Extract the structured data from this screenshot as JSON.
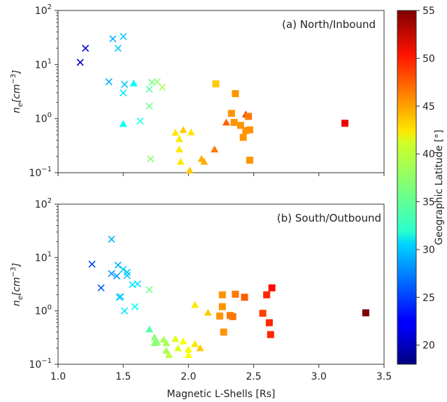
{
  "chart_data": [
    {
      "type": "scatter",
      "title": "(a) North/Inbound",
      "xlabel": "",
      "ylabel_main": "n",
      "ylabel_sub": "e",
      "ylabel_unit": "[cm",
      "ylabel_exp": "−3",
      "ylabel_close": "]",
      "xlim": [
        1.0,
        3.5
      ],
      "ylim": [
        0.1,
        100
      ],
      "yscale": "log",
      "yticks": [
        {
          "value": 0.1,
          "base": "10",
          "exp": "−1"
        },
        {
          "value": 1,
          "base": "10",
          "exp": "0"
        },
        {
          "value": 10,
          "base": "10",
          "exp": "1"
        },
        {
          "value": 100,
          "base": "10",
          "exp": "2"
        }
      ],
      "grid": false,
      "series": [
        {
          "marker": "x",
          "points": [
            {
              "x": 1.17,
              "y": 11,
              "lat": 20
            },
            {
              "x": 1.21,
              "y": 20,
              "lat": 21
            },
            {
              "x": 1.39,
              "y": 4.8,
              "lat": 29
            },
            {
              "x": 1.42,
              "y": 30,
              "lat": 29
            },
            {
              "x": 1.46,
              "y": 20,
              "lat": 30
            },
            {
              "x": 1.5,
              "y": 33,
              "lat": 30
            },
            {
              "x": 1.51,
              "y": 4.3,
              "lat": 30
            },
            {
              "x": 1.5,
              "y": 3.0,
              "lat": 31
            },
            {
              "x": 1.63,
              "y": 0.9,
              "lat": 33
            },
            {
              "x": 1.7,
              "y": 3.5,
              "lat": 35
            },
            {
              "x": 1.72,
              "y": 4.7,
              "lat": 36
            },
            {
              "x": 1.76,
              "y": 4.8,
              "lat": 37
            },
            {
              "x": 1.8,
              "y": 3.8,
              "lat": 38
            },
            {
              "x": 1.7,
              "y": 1.7,
              "lat": 36
            },
            {
              "x": 1.71,
              "y": 0.18,
              "lat": 37
            }
          ]
        },
        {
          "marker": "triangle",
          "points": [
            {
              "x": 1.5,
              "y": 0.8,
              "lat": 32
            },
            {
              "x": 1.58,
              "y": 4.5,
              "lat": 32
            },
            {
              "x": 1.9,
              "y": 0.55,
              "lat": 42
            },
            {
              "x": 1.93,
              "y": 0.42,
              "lat": 42
            },
            {
              "x": 1.93,
              "y": 0.27,
              "lat": 42
            },
            {
              "x": 1.94,
              "y": 0.16,
              "lat": 42
            },
            {
              "x": 1.96,
              "y": 0.62,
              "lat": 43
            },
            {
              "x": 2.02,
              "y": 0.56,
              "lat": 42
            },
            {
              "x": 2.01,
              "y": 0.11,
              "lat": 43
            },
            {
              "x": 2.1,
              "y": 0.18,
              "lat": 44
            },
            {
              "x": 2.12,
              "y": 0.16,
              "lat": 44
            },
            {
              "x": 2.2,
              "y": 0.27,
              "lat": 46
            },
            {
              "x": 2.29,
              "y": 0.85,
              "lat": 47
            },
            {
              "x": 2.44,
              "y": 1.2,
              "lat": 48
            }
          ]
        },
        {
          "marker": "square",
          "points": [
            {
              "x": 2.21,
              "y": 4.4,
              "lat": 43
            },
            {
              "x": 2.36,
              "y": 2.9,
              "lat": 45
            },
            {
              "x": 2.33,
              "y": 1.25,
              "lat": 45
            },
            {
              "x": 2.35,
              "y": 0.85,
              "lat": 45
            },
            {
              "x": 2.4,
              "y": 0.75,
              "lat": 45
            },
            {
              "x": 2.42,
              "y": 0.45,
              "lat": 45
            },
            {
              "x": 2.44,
              "y": 0.6,
              "lat": 45
            },
            {
              "x": 2.46,
              "y": 1.1,
              "lat": 46
            },
            {
              "x": 2.47,
              "y": 0.62,
              "lat": 45
            },
            {
              "x": 2.47,
              "y": 0.17,
              "lat": 45
            },
            {
              "x": 3.2,
              "y": 0.82,
              "lat": 51
            }
          ]
        }
      ]
    },
    {
      "type": "scatter",
      "title": "(b) South/Outbound",
      "xlabel": "Magnetic L-Shells [Rs]",
      "ylabel_main": "n",
      "ylabel_sub": "e",
      "ylabel_unit": "[cm",
      "ylabel_exp": "−3",
      "ylabel_close": "]",
      "xlim": [
        1.0,
        3.5
      ],
      "ylim": [
        0.1,
        100
      ],
      "yscale": "log",
      "xticks": [
        "1.0",
        "1.5",
        "2.0",
        "2.5",
        "3.0",
        "3.5"
      ],
      "yticks": [
        {
          "value": 0.1,
          "base": "10",
          "exp": "−1"
        },
        {
          "value": 1,
          "base": "10",
          "exp": "0"
        },
        {
          "value": 10,
          "base": "10",
          "exp": "1"
        },
        {
          "value": 100,
          "base": "10",
          "exp": "2"
        }
      ],
      "grid": false,
      "series": [
        {
          "marker": "x",
          "points": [
            {
              "x": 1.26,
              "y": 7.5,
              "lat": 25
            },
            {
              "x": 1.33,
              "y": 2.7,
              "lat": 26
            },
            {
              "x": 1.41,
              "y": 22,
              "lat": 29
            },
            {
              "x": 1.41,
              "y": 5.0,
              "lat": 28
            },
            {
              "x": 1.45,
              "y": 4.5,
              "lat": 28
            },
            {
              "x": 1.46,
              "y": 7.2,
              "lat": 29
            },
            {
              "x": 1.47,
              "y": 1.8,
              "lat": 30
            },
            {
              "x": 1.5,
              "y": 6.0,
              "lat": 30
            },
            {
              "x": 1.48,
              "y": 1.85,
              "lat": 30
            },
            {
              "x": 1.53,
              "y": 5.3,
              "lat": 30
            },
            {
              "x": 1.53,
              "y": 4.6,
              "lat": 30
            },
            {
              "x": 1.57,
              "y": 3.1,
              "lat": 31
            },
            {
              "x": 1.61,
              "y": 3.2,
              "lat": 31
            },
            {
              "x": 1.51,
              "y": 1.0,
              "lat": 31
            },
            {
              "x": 1.59,
              "y": 1.2,
              "lat": 32
            },
            {
              "x": 1.7,
              "y": 2.5,
              "lat": 36
            }
          ]
        },
        {
          "marker": "triangle",
          "points": [
            {
              "x": 1.7,
              "y": 0.45,
              "lat": 35
            },
            {
              "x": 1.74,
              "y": 0.32,
              "lat": 37
            },
            {
              "x": 1.74,
              "y": 0.25,
              "lat": 37
            },
            {
              "x": 1.76,
              "y": 0.26,
              "lat": 37
            },
            {
              "x": 1.81,
              "y": 0.29,
              "lat": 38
            },
            {
              "x": 1.83,
              "y": 0.25,
              "lat": 38
            },
            {
              "x": 1.83,
              "y": 0.18,
              "lat": 38
            },
            {
              "x": 1.85,
              "y": 0.15,
              "lat": 39
            },
            {
              "x": 1.9,
              "y": 0.3,
              "lat": 40
            },
            {
              "x": 1.92,
              "y": 0.2,
              "lat": 40
            },
            {
              "x": 1.96,
              "y": 0.27,
              "lat": 41
            },
            {
              "x": 2.0,
              "y": 0.19,
              "lat": 41
            },
            {
              "x": 2.0,
              "y": 0.15,
              "lat": 41
            },
            {
              "x": 2.05,
              "y": 0.24,
              "lat": 42
            },
            {
              "x": 2.09,
              "y": 0.2,
              "lat": 43
            },
            {
              "x": 2.05,
              "y": 1.3,
              "lat": 42
            },
            {
              "x": 2.15,
              "y": 0.93,
              "lat": 43
            }
          ]
        },
        {
          "marker": "square",
          "points": [
            {
              "x": 2.26,
              "y": 2.0,
              "lat": 45
            },
            {
              "x": 2.26,
              "y": 1.2,
              "lat": 45
            },
            {
              "x": 2.24,
              "y": 0.8,
              "lat": 45
            },
            {
              "x": 2.27,
              "y": 0.4,
              "lat": 45
            },
            {
              "x": 2.32,
              "y": 0.82,
              "lat": 46
            },
            {
              "x": 2.34,
              "y": 0.78,
              "lat": 46
            },
            {
              "x": 2.36,
              "y": 2.05,
              "lat": 46
            },
            {
              "x": 2.43,
              "y": 1.8,
              "lat": 47
            },
            {
              "x": 2.57,
              "y": 0.9,
              "lat": 48
            },
            {
              "x": 2.6,
              "y": 2.0,
              "lat": 49
            },
            {
              "x": 2.62,
              "y": 0.6,
              "lat": 49
            },
            {
              "x": 2.63,
              "y": 0.36,
              "lat": 49
            },
            {
              "x": 2.64,
              "y": 2.7,
              "lat": 50
            },
            {
              "x": 3.36,
              "y": 0.92,
              "lat": 55
            }
          ]
        }
      ]
    }
  ],
  "colorbar": {
    "label": "Geographic Latitude [°]",
    "min": 18,
    "max": 55,
    "colormap": "jet",
    "ticks": [
      "20",
      "25",
      "30",
      "35",
      "40",
      "45",
      "50",
      "55"
    ]
  }
}
